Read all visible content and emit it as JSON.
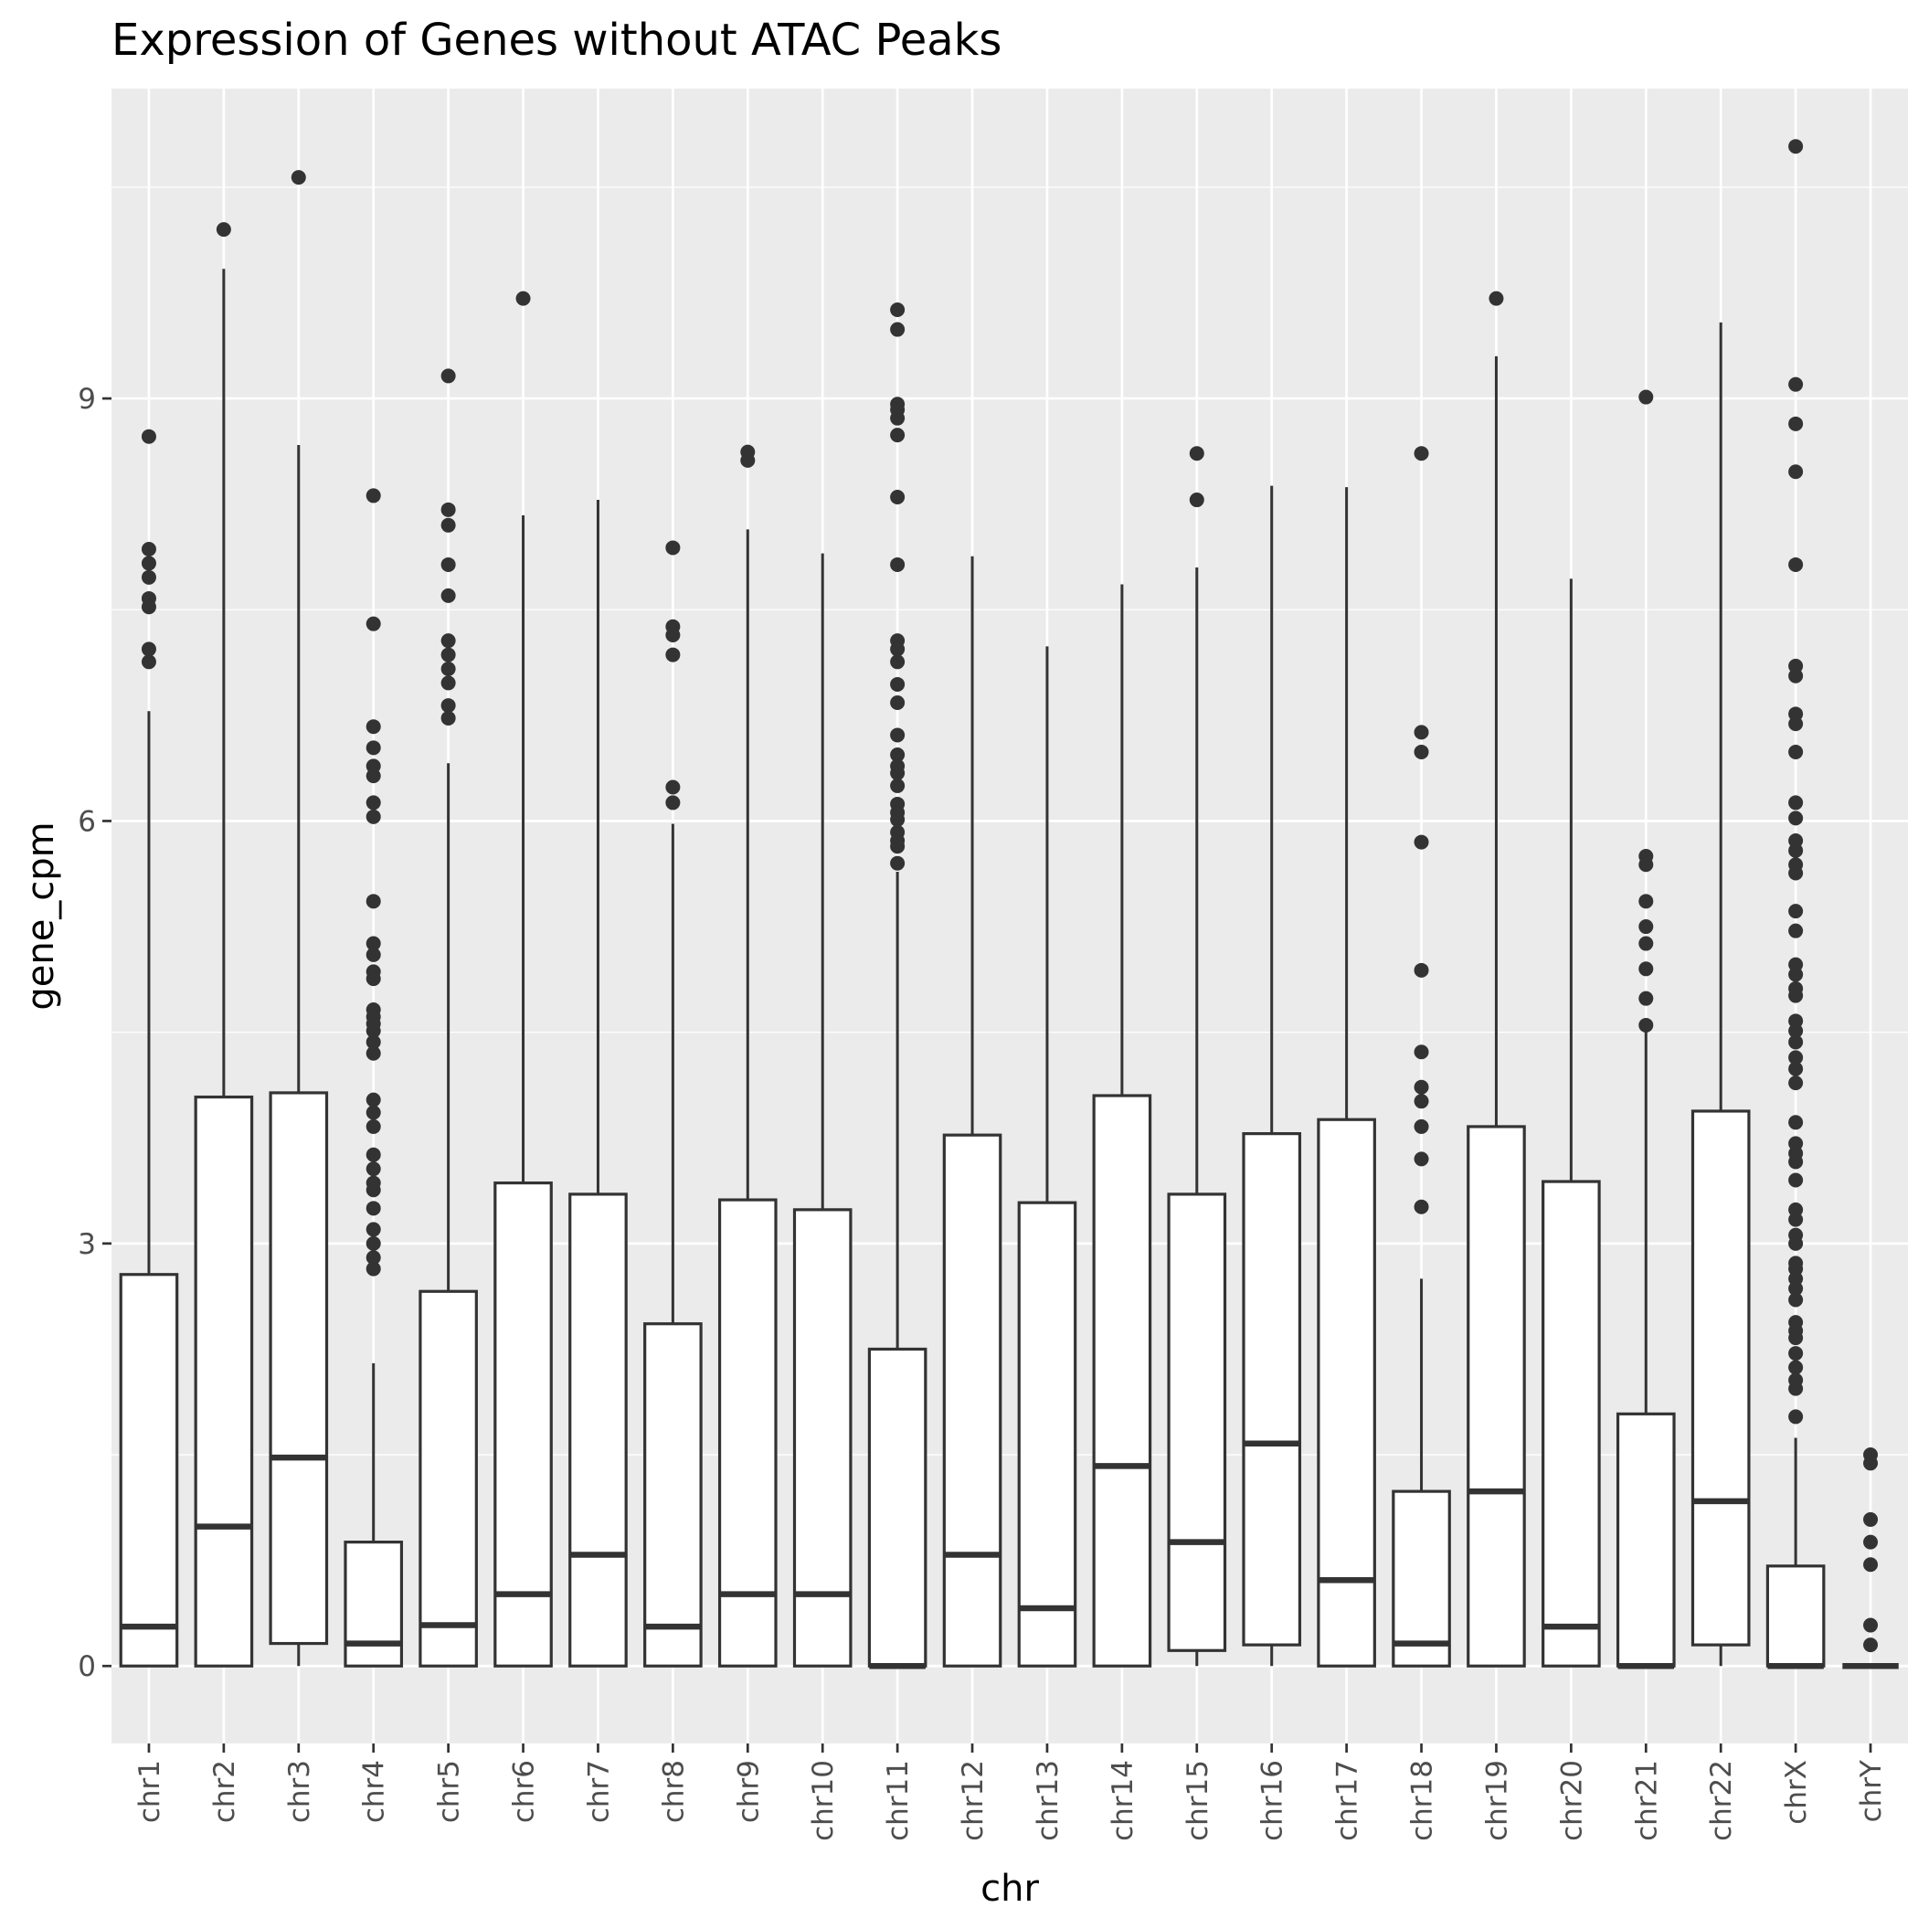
{
  "chart_data": {
    "type": "boxplot",
    "title": "Expression of Genes without ATAC Peaks",
    "xlabel": "chr",
    "ylabel": "gene_cpm",
    "ylim": [
      -0.55,
      11.2
    ],
    "yticks": [
      0,
      3,
      6,
      9
    ],
    "grid": true,
    "legend": "none",
    "colors": {
      "panel": "#ebebeb",
      "grid": "#ffffff",
      "box_fill": "#ffffff",
      "stroke": "#333333",
      "tick_text": "#4d4d4d"
    },
    "categories": [
      "chr1",
      "chr2",
      "chr3",
      "chr4",
      "chr5",
      "chr6",
      "chr7",
      "chr8",
      "chr9",
      "chr10",
      "chr11",
      "chr12",
      "chr13",
      "chr14",
      "chr15",
      "chr16",
      "chr17",
      "chr18",
      "chr19",
      "chr20",
      "chr21",
      "chr22",
      "chrX",
      "chrY"
    ],
    "boxes": [
      {
        "chr": "chr1",
        "lower": 0,
        "q1": 0,
        "median": 0.28,
        "q3": 2.78,
        "upper": 6.78,
        "outliers": [
          8.73,
          7.93,
          7.83,
          7.73,
          7.58,
          7.52,
          7.22,
          7.13
        ]
      },
      {
        "chr": "chr2",
        "lower": 0,
        "q1": 0,
        "median": 0.99,
        "q3": 4.04,
        "upper": 9.92,
        "outliers": [
          10.2
        ]
      },
      {
        "chr": "chr3",
        "lower": 0,
        "q1": 0.16,
        "median": 1.48,
        "q3": 4.07,
        "upper": 8.67,
        "outliers": [
          10.57
        ]
      },
      {
        "chr": "chr4",
        "lower": 0,
        "q1": 0,
        "median": 0.16,
        "q3": 0.88,
        "upper": 2.15,
        "outliers": [
          8.31,
          7.4,
          6.67,
          6.52,
          6.39,
          6.32,
          6.13,
          6.03,
          5.43,
          5.13,
          5.05,
          4.93,
          4.88,
          4.66,
          4.61,
          4.56,
          4.51,
          4.43,
          4.35,
          4.02,
          3.93,
          3.83,
          3.63,
          3.53,
          3.43,
          3.38,
          3.25,
          3.1,
          3.0,
          2.9,
          2.82
        ]
      },
      {
        "chr": "chr5",
        "lower": 0,
        "q1": 0,
        "median": 0.29,
        "q3": 2.66,
        "upper": 6.41,
        "outliers": [
          9.16,
          8.21,
          8.1,
          7.82,
          7.6,
          7.28,
          7.18,
          7.08,
          6.98,
          6.82,
          6.73
        ]
      },
      {
        "chr": "chr6",
        "lower": 0,
        "q1": 0,
        "median": 0.51,
        "q3": 3.43,
        "upper": 8.17,
        "outliers": [
          9.71
        ]
      },
      {
        "chr": "chr7",
        "lower": 0,
        "q1": 0,
        "median": 0.79,
        "q3": 3.35,
        "upper": 8.28,
        "outliers": []
      },
      {
        "chr": "chr8",
        "lower": 0,
        "q1": 0,
        "median": 0.28,
        "q3": 2.43,
        "upper": 5.98,
        "outliers": [
          7.94,
          7.38,
          7.32,
          7.18,
          6.24,
          6.13
        ]
      },
      {
        "chr": "chr9",
        "lower": 0,
        "q1": 0,
        "median": 0.51,
        "q3": 3.31,
        "upper": 8.07,
        "outliers": [
          8.62,
          8.56
        ]
      },
      {
        "chr": "chr10",
        "lower": 0,
        "q1": 0,
        "median": 0.51,
        "q3": 3.24,
        "upper": 7.9,
        "outliers": []
      },
      {
        "chr": "chr11",
        "lower": 0,
        "q1": 0,
        "median": 0,
        "q3": 2.25,
        "upper": 5.64,
        "outliers": [
          9.63,
          9.49,
          8.96,
          8.92,
          8.86,
          8.74,
          8.3,
          7.82,
          7.28,
          7.22,
          7.13,
          6.97,
          6.84,
          6.61,
          6.47,
          6.39,
          6.34,
          6.25,
          6.12,
          6.06,
          6.01,
          5.92,
          5.86,
          5.82,
          5.7
        ]
      },
      {
        "chr": "chr12",
        "lower": 0,
        "q1": 0,
        "median": 0.79,
        "q3": 3.77,
        "upper": 7.88,
        "outliers": []
      },
      {
        "chr": "chr13",
        "lower": 0,
        "q1": 0,
        "median": 0.41,
        "q3": 3.29,
        "upper": 7.24,
        "outliers": []
      },
      {
        "chr": "chr14",
        "lower": 0,
        "q1": 0,
        "median": 1.42,
        "q3": 4.05,
        "upper": 7.68,
        "outliers": []
      },
      {
        "chr": "chr15",
        "lower": 0,
        "q1": 0.11,
        "median": 0.88,
        "q3": 3.35,
        "upper": 7.8,
        "outliers": [
          8.61,
          8.28
        ]
      },
      {
        "chr": "chr16",
        "lower": 0,
        "q1": 0.15,
        "median": 1.58,
        "q3": 3.78,
        "upper": 8.38,
        "outliers": []
      },
      {
        "chr": "chr17",
        "lower": 0,
        "q1": 0,
        "median": 0.61,
        "q3": 3.88,
        "upper": 8.37,
        "outliers": []
      },
      {
        "chr": "chr18",
        "lower": 0,
        "q1": 0,
        "median": 0.16,
        "q3": 1.24,
        "upper": 2.75,
        "outliers": [
          8.61,
          6.63,
          6.49,
          5.85,
          4.94,
          4.36,
          4.11,
          4.01,
          3.83,
          3.6,
          3.26
        ]
      },
      {
        "chr": "chr19",
        "lower": 0,
        "q1": 0,
        "median": 1.24,
        "q3": 3.83,
        "upper": 9.3,
        "outliers": [
          9.71
        ]
      },
      {
        "chr": "chr20",
        "lower": 0,
        "q1": 0,
        "median": 0.28,
        "q3": 3.44,
        "upper": 7.72,
        "outliers": []
      },
      {
        "chr": "chr21",
        "lower": 0,
        "q1": 0,
        "median": 0,
        "q3": 1.79,
        "upper": 4.52,
        "outliers": [
          9.01,
          5.75,
          5.69,
          5.43,
          5.25,
          5.13,
          4.95,
          4.74,
          4.55
        ]
      },
      {
        "chr": "chr22",
        "lower": 0,
        "q1": 0.15,
        "median": 1.17,
        "q3": 3.94,
        "upper": 9.54,
        "outliers": []
      },
      {
        "chr": "chrX",
        "lower": 0,
        "q1": 0,
        "median": 0,
        "q3": 0.71,
        "upper": 1.62,
        "outliers": [
          10.79,
          9.1,
          8.82,
          8.48,
          7.82,
          7.1,
          7.03,
          6.76,
          6.69,
          6.49,
          6.13,
          6.02,
          5.86,
          5.79,
          5.69,
          5.63,
          5.36,
          5.22,
          4.98,
          4.91,
          4.81,
          4.76,
          4.58,
          4.51,
          4.43,
          4.32,
          4.24,
          4.14,
          3.86,
          3.71,
          3.64,
          3.58,
          3.45,
          3.24,
          3.17,
          3.06,
          3.0,
          2.86,
          2.82,
          2.75,
          2.68,
          2.6,
          2.44,
          2.38,
          2.33,
          2.22,
          2.12,
          2.03,
          1.97,
          1.77
        ]
      },
      {
        "chr": "chrY",
        "lower": 0,
        "q1": 0,
        "median": 0,
        "q3": 0,
        "upper": 0,
        "outliers": [
          1.5,
          1.44,
          1.04,
          0.88,
          0.72,
          0.29,
          0.15
        ]
      }
    ]
  }
}
